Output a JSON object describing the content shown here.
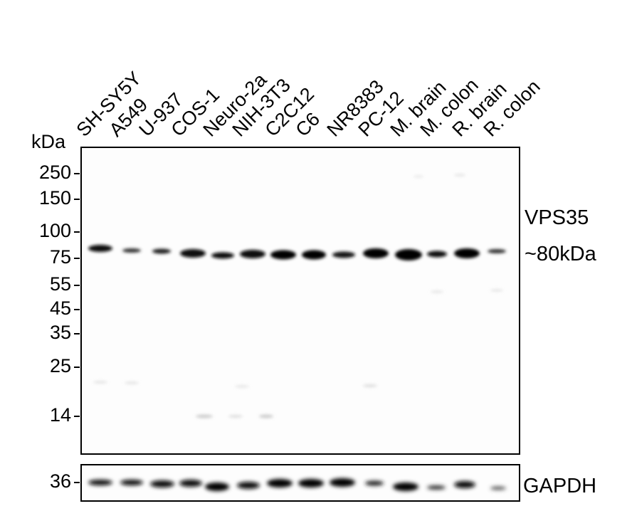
{
  "unit_label": "kDa",
  "lanes": [
    "SH-SY5Y",
    "A549",
    "U-937",
    "COS-1",
    "Neuro-2a",
    "NIH-3T3",
    "C2C12",
    "C6",
    "NR8383",
    "PC-12",
    "M. brain",
    "M. colon",
    "R. brain",
    "R. colon"
  ],
  "markers": [
    "250",
    "150",
    "100",
    "75",
    "55",
    "45",
    "35",
    "25",
    "14"
  ],
  "loading_control_marker": "36",
  "target_label": "VPS35",
  "target_size": "~80kDa",
  "loading_control_label": "GAPDH"
}
